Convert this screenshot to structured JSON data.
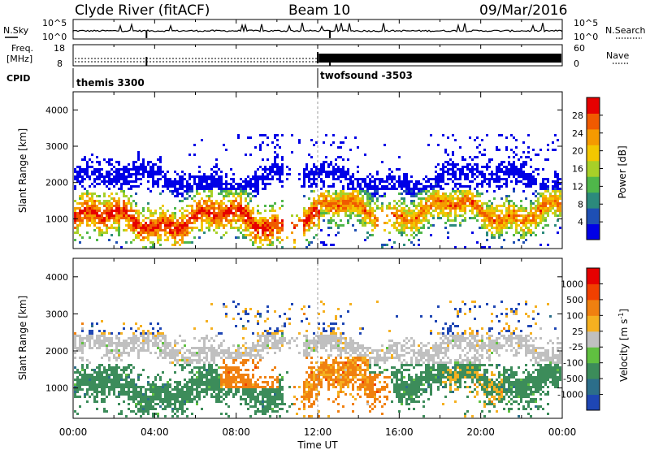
{
  "header": {
    "station": "Clyde River (fitACF)",
    "beam": "Beam 10",
    "date": "09/Mar/2016"
  },
  "noise_panel": {
    "left_label": "N.Sky",
    "right_label": "N.Search",
    "left_ticks": [
      "10^5",
      "10^0"
    ],
    "right_ticks": [
      "10^5",
      "10^0"
    ]
  },
  "freq_panel": {
    "left_label_line1": "Freq.",
    "left_label_line2": "[MHz]",
    "right_label": "Nave",
    "left_ticks": [
      "18",
      "8"
    ],
    "right_ticks": [
      "60",
      "0"
    ]
  },
  "cpid": {
    "label": "CPID",
    "modes": [
      {
        "name": "themis 3300",
        "start_hour": 0
      },
      {
        "name": "twofsound -3503",
        "start_hour": 12
      }
    ]
  },
  "chart_data": [
    {
      "type": "heatmap",
      "ylabel": "Slant Range [km]",
      "xlabel": "Time UT",
      "xlim": [
        0,
        24
      ],
      "ylim": [
        180,
        4500
      ],
      "y_ticks": [
        1000,
        2000,
        3000,
        4000
      ],
      "x_ticks": [
        "00:00",
        "04:00",
        "08:00",
        "12:00",
        "16:00",
        "20:00",
        "00:00"
      ],
      "colorbar": {
        "label": "Power [dB]",
        "ticks": [
          4,
          8,
          12,
          16,
          20,
          24,
          28
        ],
        "range": [
          0,
          30
        ]
      },
      "colors": [
        "#0000e6",
        "#1e4fb4",
        "#2c8a7c",
        "#4fb74a",
        "#a8d028",
        "#f3c700",
        "#f59a00",
        "#f05a00",
        "#e60000"
      ]
    },
    {
      "type": "heatmap",
      "ylabel": "Slant Range [km]",
      "xlabel": "Time UT",
      "xlim": [
        0,
        24
      ],
      "ylim": [
        180,
        4500
      ],
      "y_ticks": [
        1000,
        2000,
        3000,
        4000
      ],
      "x_ticks": [
        "00:00",
        "04:00",
        "08:00",
        "12:00",
        "16:00",
        "20:00",
        "00:00"
      ],
      "colorbar": {
        "label": "Velocity [m s",
        "label_exp": "-1",
        "label_end": "]",
        "ticks": [
          "1000",
          "500",
          "100",
          "25",
          "-25",
          "-100",
          "-500",
          "-1000"
        ]
      },
      "colors": [
        "#1e46b4",
        "#2c6e8a",
        "#3c8c5a",
        "#60c040",
        "#c0c0c0",
        "#f5b020",
        "#f08010",
        "#f04000",
        "#e60000"
      ]
    }
  ]
}
